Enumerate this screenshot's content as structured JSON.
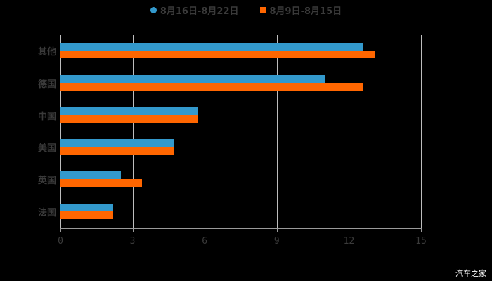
{
  "chart_data": {
    "type": "bar",
    "orientation": "horizontal",
    "title": "",
    "xlabel": "",
    "ylabel": "",
    "categories": [
      "其他",
      "德国",
      "中国",
      "美国",
      "英国",
      "法国"
    ],
    "series": [
      {
        "name": "8月16日-8月22日",
        "color": "#3399cc",
        "values": [
          12.6,
          11.0,
          5.7,
          4.7,
          2.5,
          2.2
        ]
      },
      {
        "name": "8月9日-8月15日",
        "color": "#ff6600",
        "values": [
          13.1,
          12.6,
          5.7,
          4.7,
          3.4,
          2.2
        ]
      }
    ],
    "xlim": [
      0,
      15
    ],
    "xticks": [
      "0",
      "3",
      "6",
      "9",
      "12",
      "15"
    ],
    "grid": true,
    "legend_position": "top"
  },
  "legend": {
    "series1": "8月16日-8月22日",
    "series2": "8月9日-8月15日"
  },
  "watermark": "汽车之家"
}
